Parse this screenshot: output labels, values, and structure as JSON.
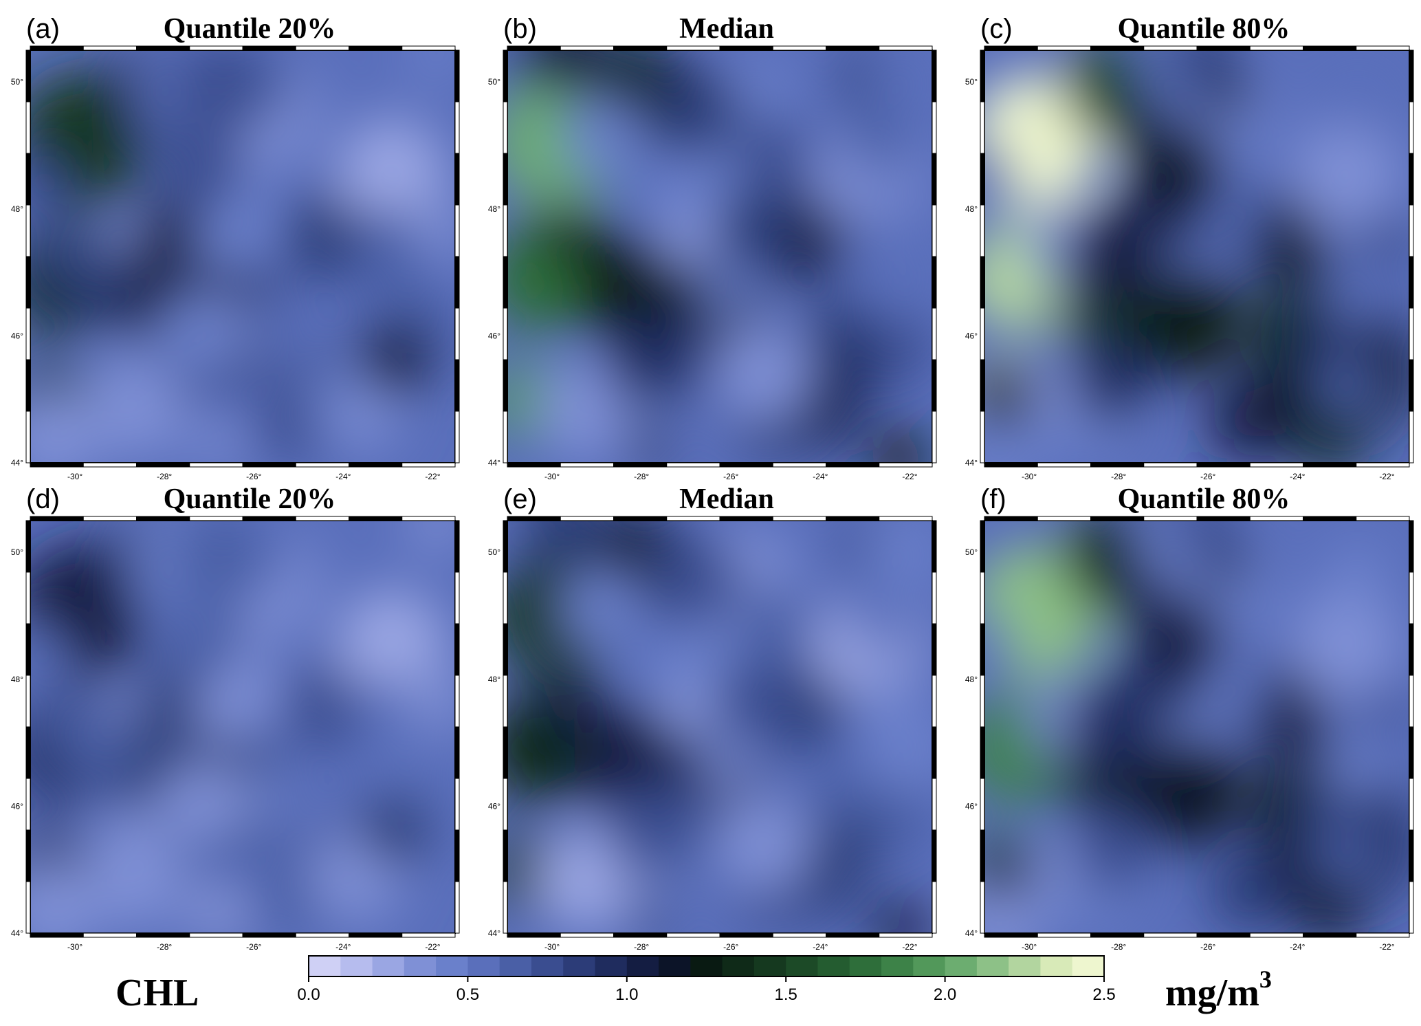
{
  "panels": [
    {
      "letter": "(a)",
      "title": "Quantile 20%",
      "intensity": 0.85,
      "green": 0.45
    },
    {
      "letter": "(b)",
      "title": "Median",
      "intensity": 1.0,
      "green": 0.75
    },
    {
      "letter": "(c)",
      "title": "Quantile 80%",
      "intensity": 1.15,
      "green": 1.0
    },
    {
      "letter": "(d)",
      "title": "Quantile 20%",
      "intensity": 0.7,
      "green": 0.2
    },
    {
      "letter": "(e)",
      "title": "Median",
      "intensity": 0.85,
      "green": 0.45
    },
    {
      "letter": "(f)",
      "title": "Quantile 80%",
      "intensity": 1.0,
      "green": 0.9
    }
  ],
  "axes": {
    "x_ticks": [
      "-30°",
      "-28°",
      "-26°",
      "-24°",
      "-22°"
    ],
    "x_values": [
      -30,
      -28,
      -26,
      -24,
      -22
    ],
    "x_range": [
      -31,
      -21.5
    ],
    "y_ticks": [
      "50°",
      "48°",
      "46°",
      "44°"
    ],
    "y_values": [
      50,
      48,
      46,
      44
    ],
    "y_range": [
      44,
      50.5
    ]
  },
  "colorbar": {
    "variable": "CHL",
    "units": "mg/m",
    "units_exp": "3",
    "ticks": [
      "0.0",
      "0.5",
      "1.0",
      "1.5",
      "2.0",
      "2.5"
    ],
    "min": 0.0,
    "max": 2.5,
    "colors": [
      "#cfd0f5",
      "#b6bcee",
      "#9aa6e3",
      "#7f90d6",
      "#6a80cb",
      "#5a6fbb",
      "#4a5fa6",
      "#3a4d90",
      "#2c3c78",
      "#1f2c5e",
      "#141d42",
      "#0c1428",
      "#091a12",
      "#0f2a18",
      "#15391f",
      "#1c4a27",
      "#245c30",
      "#2e6e3a",
      "#3d8248",
      "#52985a",
      "#6cad70",
      "#8dc187",
      "#b2d59f",
      "#d8eab8",
      "#eef6cf"
    ]
  }
}
